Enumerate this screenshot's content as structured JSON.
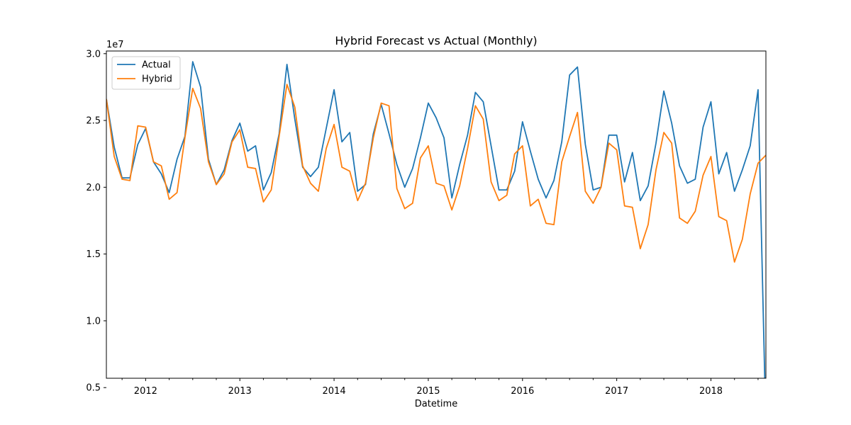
{
  "chart_data": {
    "type": "line",
    "title": "Hybrid Forecast vs Actual (Monthly)",
    "xlabel": "Datetime",
    "ylabel": "",
    "y_offset_label": "1e7",
    "x_start": "2011-08",
    "x_end": "2018-08",
    "x_tick_labels": [
      "2012",
      "2013",
      "2014",
      "2015",
      "2016",
      "2017",
      "2018"
    ],
    "y_ticks": [
      0.5,
      1.0,
      1.5,
      2.0,
      2.5,
      3.0
    ],
    "y_tick_labels": [
      "0.5",
      "1.0",
      "1.5",
      "2.0",
      "2.5",
      "3.0"
    ],
    "ylim": [
      0.57,
      3.02
    ],
    "grid": false,
    "legend_position": "upper-left",
    "months": [
      "2011-08",
      "2011-09",
      "2011-10",
      "2011-11",
      "2011-12",
      "2012-01",
      "2012-02",
      "2012-03",
      "2012-04",
      "2012-05",
      "2012-06",
      "2012-07",
      "2012-08",
      "2012-09",
      "2012-10",
      "2012-11",
      "2012-12",
      "2013-01",
      "2013-02",
      "2013-03",
      "2013-04",
      "2013-05",
      "2013-06",
      "2013-07",
      "2013-08",
      "2013-09",
      "2013-10",
      "2013-11",
      "2013-12",
      "2014-01",
      "2014-02",
      "2014-03",
      "2014-04",
      "2014-05",
      "2014-06",
      "2014-07",
      "2014-08",
      "2014-09",
      "2014-10",
      "2014-11",
      "2014-12",
      "2015-01",
      "2015-02",
      "2015-03",
      "2015-04",
      "2015-05",
      "2015-06",
      "2015-07",
      "2015-08",
      "2015-09",
      "2015-10",
      "2015-11",
      "2015-12",
      "2016-01",
      "2016-02",
      "2016-03",
      "2016-04",
      "2016-05",
      "2016-06",
      "2016-07",
      "2016-08",
      "2016-09",
      "2016-10",
      "2016-11",
      "2016-12",
      "2017-01",
      "2017-02",
      "2017-03",
      "2017-04",
      "2017-05",
      "2017-06",
      "2017-07",
      "2017-08",
      "2017-09",
      "2017-10",
      "2017-11",
      "2017-12",
      "2018-01",
      "2018-02",
      "2018-03",
      "2018-04",
      "2018-05",
      "2018-06",
      "2018-07",
      "2018-08"
    ],
    "series": [
      {
        "name": "Actual",
        "color": "#1f77b4",
        "values": [
          2.66,
          2.3,
          2.07,
          2.07,
          2.32,
          2.44,
          2.19,
          2.1,
          1.96,
          2.21,
          2.38,
          2.94,
          2.75,
          2.21,
          2.02,
          2.13,
          2.35,
          2.48,
          2.27,
          2.31,
          1.98,
          2.11,
          2.4,
          2.92,
          2.51,
          2.15,
          2.08,
          2.15,
          2.44,
          2.73,
          2.34,
          2.41,
          1.97,
          2.02,
          2.4,
          2.62,
          2.4,
          2.17,
          2.0,
          2.14,
          2.37,
          2.63,
          2.52,
          2.37,
          1.92,
          2.17,
          2.39,
          2.71,
          2.64,
          2.31,
          1.98,
          1.98,
          2.12,
          2.49,
          2.27,
          2.06,
          1.92,
          2.05,
          2.34,
          2.84,
          2.9,
          2.32,
          1.98,
          2.0,
          2.39,
          2.39,
          2.04,
          2.26,
          1.9,
          2.01,
          2.33,
          2.72,
          2.48,
          2.16,
          2.03,
          2.06,
          2.45,
          2.64,
          2.1,
          2.26,
          1.97,
          2.13,
          2.31,
          2.73,
          0.2
        ]
      },
      {
        "name": "Hybrid",
        "color": "#ff7f0e",
        "values": [
          2.66,
          2.23,
          2.06,
          2.05,
          2.46,
          2.45,
          2.19,
          2.16,
          1.91,
          1.96,
          2.37,
          2.74,
          2.59,
          2.19,
          2.02,
          2.1,
          2.34,
          2.43,
          2.15,
          2.14,
          1.89,
          1.98,
          2.38,
          2.77,
          2.6,
          2.16,
          2.03,
          1.97,
          2.29,
          2.47,
          2.15,
          2.12,
          1.9,
          2.03,
          2.37,
          2.63,
          2.61,
          1.99,
          1.84,
          1.88,
          2.22,
          2.31,
          2.03,
          2.01,
          1.83,
          2.01,
          2.29,
          2.61,
          2.51,
          2.04,
          1.9,
          1.94,
          2.25,
          2.31,
          1.86,
          1.91,
          1.73,
          1.72,
          2.19,
          2.38,
          2.56,
          1.97,
          1.88,
          2.0,
          2.33,
          2.28,
          1.86,
          1.85,
          1.54,
          1.72,
          2.13,
          2.41,
          2.33,
          1.77,
          1.73,
          1.82,
          2.09,
          2.23,
          1.78,
          1.75,
          1.44,
          1.61,
          1.95,
          2.18,
          2.24
        ]
      }
    ]
  }
}
